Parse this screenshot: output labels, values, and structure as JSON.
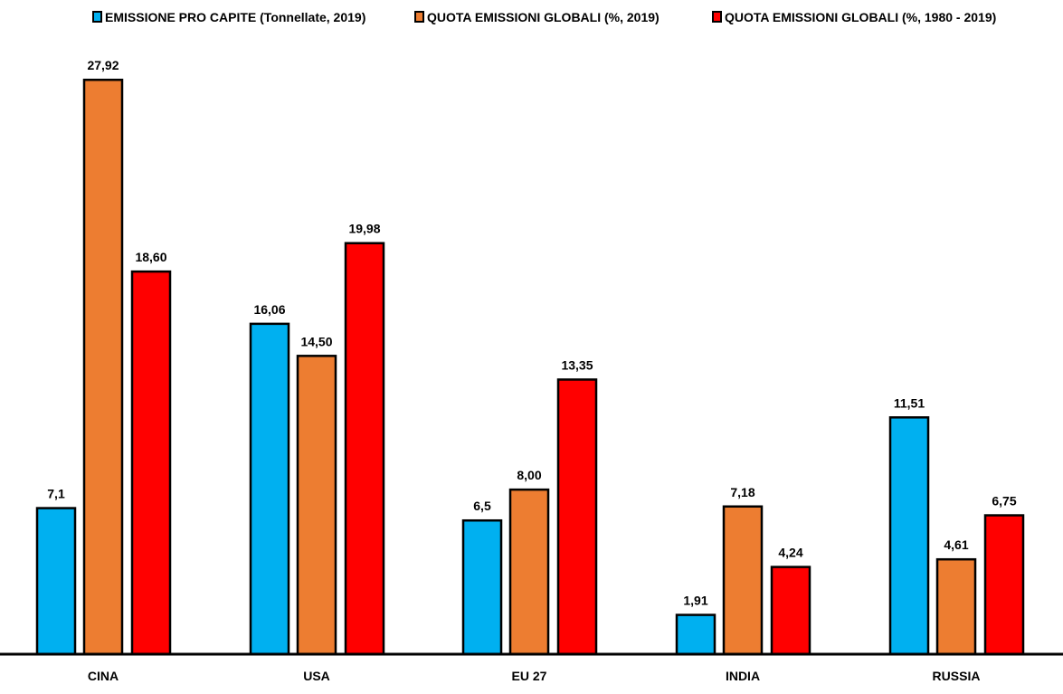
{
  "chart_data": {
    "type": "bar",
    "title": "",
    "xlabel": "",
    "ylabel": "",
    "ylim": [
      0,
      31.8
    ],
    "grid": false,
    "legend_position": "top",
    "categories": [
      "CINA",
      "USA",
      "EU 27",
      "INDIA",
      "RUSSIA"
    ],
    "series": [
      {
        "name": "EMISSIONE PRO CAPITE (Tonnellate, 2019)",
        "color": "#00b0f0",
        "values": [
          7.1,
          16.06,
          6.5,
          1.91,
          11.51
        ],
        "labels": [
          "7,1",
          "16,06",
          "6,5",
          "1,91",
          "11,51"
        ]
      },
      {
        "name": "QUOTA EMISSIONI GLOBALI (%, 2019)",
        "color": "#ed7d31",
        "values": [
          27.92,
          14.5,
          8.0,
          7.18,
          4.61
        ],
        "labels": [
          "27,92",
          "14,50",
          "8,00",
          "7,18",
          "4,61"
        ]
      },
      {
        "name": "QUOTA EMISSIONI GLOBALI (%, 1980 - 2019)",
        "color": "#ff0000",
        "values": [
          18.6,
          19.98,
          13.35,
          4.24,
          6.75
        ],
        "labels": [
          "18,60",
          "19,98",
          "13,35",
          "4,24",
          "6,75"
        ]
      }
    ]
  }
}
